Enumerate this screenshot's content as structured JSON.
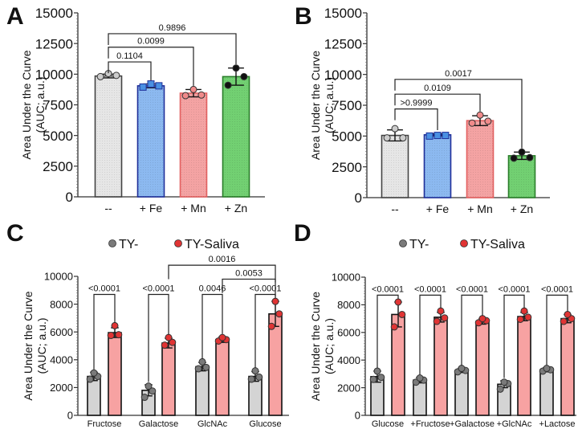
{
  "chart_data": [
    {
      "panel": "A",
      "type": "bar",
      "ylabel": [
        "Area Under the Curve",
        "(AUC; a.u.)"
      ],
      "ylim": [
        0,
        15000
      ],
      "yticks": [
        0,
        2500,
        5000,
        7500,
        10000,
        12500,
        15000
      ],
      "categories": [
        "--",
        "+ Fe",
        "+ Mn",
        "+ Zn"
      ],
      "values": [
        9850,
        9050,
        8450,
        9800
      ],
      "points": [
        [
          9800,
          9900,
          10050
        ],
        [
          8950,
          9050,
          9200
        ],
        [
          8250,
          8300,
          8750
        ],
        [
          9100,
          9800,
          10500
        ]
      ],
      "errors": [
        150,
        150,
        300,
        700
      ],
      "colors": [
        "#e6e6e6",
        "#8cb9f0",
        "#f4a3a3",
        "#72d072"
      ],
      "edge_colors": [
        "#444444",
        "#1f2f9a",
        "#e36060",
        "#2a7d2a"
      ],
      "point_colors": [
        "#cccccc",
        "#4a90e2",
        "#f08a8a",
        "#111111"
      ],
      "comparisons": [
        {
          "from": 0,
          "to": 1,
          "y": 11000,
          "label": "0.1104"
        },
        {
          "from": 0,
          "to": 2,
          "y": 12200,
          "label": "0.0099"
        },
        {
          "from": 0,
          "to": 3,
          "y": 13300,
          "label": "0.9896"
        }
      ]
    },
    {
      "panel": "B",
      "type": "bar",
      "ylabel": [
        "Area Under the Curve",
        "(AUC; a.u.)"
      ],
      "ylim": [
        0,
        15000
      ],
      "yticks": [
        0,
        2500,
        5000,
        7500,
        10000,
        12500,
        15000
      ],
      "categories": [
        "--",
        "+ Fe",
        "+ Mn",
        "+ Zn"
      ],
      "values": [
        5050,
        5100,
        6250,
        3400
      ],
      "points": [
        [
          4850,
          4850,
          5600
        ],
        [
          5000,
          5050,
          5050
        ],
        [
          6050,
          6200,
          6700
        ],
        [
          3200,
          3250,
          3700
        ]
      ],
      "errors": [
        450,
        80,
        400,
        300
      ],
      "colors": [
        "#e6e6e6",
        "#8cb9f0",
        "#f4a3a3",
        "#72d072"
      ],
      "edge_colors": [
        "#444444",
        "#1f2f9a",
        "#e36060",
        "#2a7d2a"
      ],
      "point_colors": [
        "#cccccc",
        "#4a90e2",
        "#f08a8a",
        "#111111"
      ],
      "comparisons": [
        {
          "from": 0,
          "to": 1,
          "y": 7200,
          "label": ">0.9999"
        },
        {
          "from": 0,
          "to": 2,
          "y": 8400,
          "label": "0.0109"
        },
        {
          "from": 0,
          "to": 3,
          "y": 9600,
          "label": "0.0017"
        }
      ]
    },
    {
      "panel": "C",
      "type": "bar",
      "ylabel": [
        "Area Under the Curve",
        "(AUC; a.u.)"
      ],
      "ylim": [
        0,
        10000
      ],
      "yticks": [
        0,
        2000,
        4000,
        6000,
        8000,
        10000
      ],
      "categories": [
        "Fructose",
        "Galactose",
        "GlcNAc",
        "Glucose"
      ],
      "legend": [
        "TY-",
        "TY-Saliva"
      ],
      "series": [
        {
          "name": "TY-",
          "values": [
            2800,
            1800,
            3500,
            2800
          ],
          "points": [
            [
              2600,
              2800,
              3050
            ],
            [
              1300,
              1750,
              2100
            ],
            [
              3350,
              3450,
              3850
            ],
            [
              2600,
              2750,
              3200
            ]
          ],
          "errors": [
            300,
            400,
            300,
            350
          ],
          "color": "#d4d4d4",
          "point_color": "#7a7a7a"
        },
        {
          "name": "TY-Saliva",
          "values": [
            5950,
            5200,
            5450,
            7300
          ],
          "points": [
            [
              5750,
              5800,
              6450
            ],
            [
              5050,
              5250,
              5600
            ],
            [
              5350,
              5450,
              5600
            ],
            [
              6400,
              7300,
              8200
            ]
          ],
          "errors": [
            350,
            350,
            200,
            900
          ],
          "color": "#f7a2a2",
          "point_color": "#e03434"
        }
      ],
      "comparisons": [
        {
          "group": 0,
          "y": 8700,
          "label": "<0.0001"
        },
        {
          "group": 1,
          "y": 8700,
          "label": "<0.0001"
        },
        {
          "group": 2,
          "y": 8700,
          "label": "0.0046"
        },
        {
          "group": 3,
          "y": 8700,
          "label": "<0.0001"
        },
        {
          "from_group": 1,
          "to_group": 3,
          "series": 1,
          "y": 10800,
          "label": "0.0016"
        },
        {
          "from_group": 2,
          "to_group": 3,
          "series": 1,
          "y": 9800,
          "label": "0.0053"
        }
      ]
    },
    {
      "panel": "D",
      "type": "bar",
      "ylabel": [
        "Area Under the Curve",
        "(AUC; a.u.)"
      ],
      "ylim": [
        0,
        10000
      ],
      "yticks": [
        0,
        2000,
        4000,
        6000,
        8000,
        10000
      ],
      "categories": [
        "Glucose",
        "+Fructose",
        "+Galactose",
        "+GlcNAc",
        "+Lactose"
      ],
      "legend": [
        "TY-",
        "TY-Saliva"
      ],
      "series": [
        {
          "name": "TY-",
          "values": [
            2800,
            2550,
            3250,
            2250,
            3300
          ],
          "points": [
            [
              2600,
              2750,
              3200
            ],
            [
              2400,
              2550,
              2700
            ],
            [
              3150,
              3250,
              3400
            ],
            [
              1900,
              2300,
              2400
            ],
            [
              3200,
              3300,
              3400
            ]
          ],
          "errors": [
            400,
            200,
            150,
            250,
            150
          ],
          "color": "#d4d4d4",
          "point_color": "#7a7a7a"
        },
        {
          "name": "TY-Saliva",
          "values": [
            7300,
            7100,
            6800,
            7150,
            7000
          ],
          "points": [
            [
              6400,
              7300,
              8200
            ],
            [
              6800,
              7050,
              7550
            ],
            [
              6700,
              6850,
              7000
            ],
            [
              6950,
              7100,
              7550
            ],
            [
              6800,
              7000,
              7300
            ]
          ],
          "errors": [
            900,
            350,
            200,
            300,
            300
          ],
          "color": "#f7a2a2",
          "point_color": "#e03434"
        }
      ],
      "comparisons": [
        {
          "group": 0,
          "y": 8700,
          "label": "<0.0001"
        },
        {
          "group": 1,
          "y": 8700,
          "label": "<0.0001"
        },
        {
          "group": 2,
          "y": 8700,
          "label": "<0.0001"
        },
        {
          "group": 3,
          "y": 8700,
          "label": "<0.0001"
        },
        {
          "group": 4,
          "y": 8700,
          "label": "<0.0001"
        }
      ]
    }
  ]
}
